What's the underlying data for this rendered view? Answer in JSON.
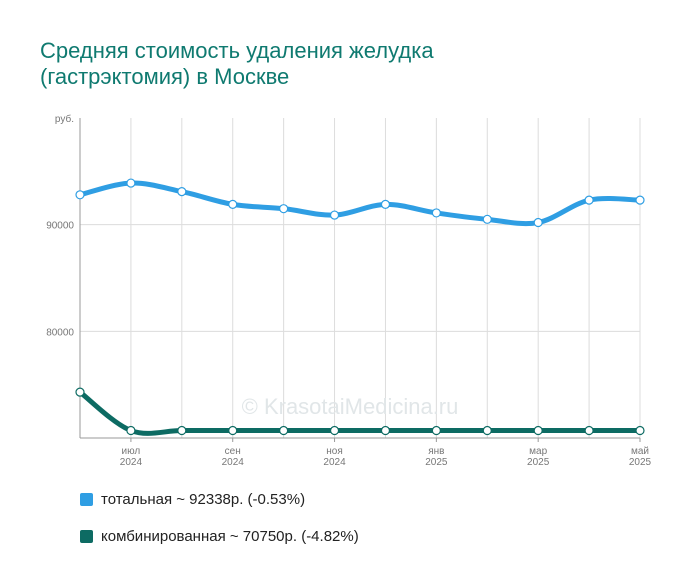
{
  "title": [
    "Средняя стоимость удаления желудка",
    "(гастрэктомия) в Москве"
  ],
  "watermark": "© KrasotaiMedicina.ru",
  "legend": [
    {
      "label": "тотальная ~ 92338р. (-0.53%)",
      "color": "#2f9ee3"
    },
    {
      "label": "комбинированная ~ 70750р. (-4.82%)",
      "color": "#0d6b63"
    }
  ],
  "chart_data": {
    "type": "line",
    "ylabel": "руб.",
    "ylim": [
      70000,
      100000
    ],
    "yticks": [
      {
        "value": 80000,
        "label": "80000"
      },
      {
        "value": 90000,
        "label": "90000"
      }
    ],
    "x": [
      0,
      1,
      2,
      3,
      4,
      5,
      6,
      7,
      8,
      9,
      10,
      11
    ],
    "x_ticks": [
      {
        "x": 1,
        "label": [
          "июл",
          "2024"
        ]
      },
      {
        "x": 3,
        "label": [
          "сен",
          "2024"
        ]
      },
      {
        "x": 5,
        "label": [
          "ноя",
          "2024"
        ]
      },
      {
        "x": 7,
        "label": [
          "янв",
          "2025"
        ]
      },
      {
        "x": 9,
        "label": [
          "мар",
          "2025"
        ]
      },
      {
        "x": 11,
        "label": [
          "май",
          "2025"
        ]
      }
    ],
    "series": [
      {
        "name": "тотальная",
        "color": "#2f9ee3",
        "values": [
          92800,
          93900,
          93100,
          91900,
          91500,
          90900,
          91900,
          91100,
          90500,
          90200,
          92300,
          92300
        ]
      },
      {
        "name": "комбинированная",
        "color": "#0d6b63",
        "values": [
          74300,
          70700,
          70700,
          70700,
          70700,
          70700,
          70700,
          70700,
          70700,
          70700,
          70700,
          70700
        ]
      }
    ],
    "grid": true
  }
}
